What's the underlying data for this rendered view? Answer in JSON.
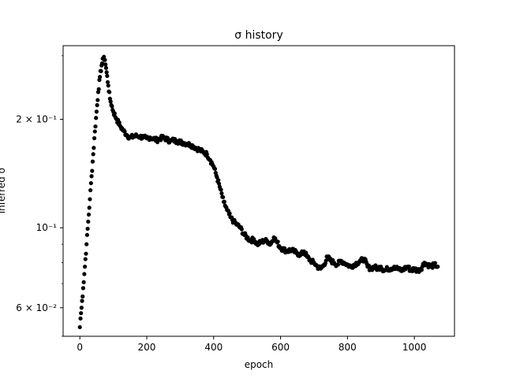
{
  "chart_data": {
    "type": "scatter",
    "title": "σ history",
    "xlabel": "epoch",
    "ylabel": "inferred σ",
    "y_scale": "log",
    "xlim": [
      -50,
      1120
    ],
    "ylim": [
      0.05,
      0.32
    ],
    "x_ticks": [
      0,
      200,
      400,
      600,
      800,
      1000
    ],
    "x_tick_labels": [
      "0",
      "200",
      "400",
      "600",
      "800",
      "1000"
    ],
    "y_major_ticks": [
      0.06,
      0.1,
      0.2
    ],
    "y_tick_labels": [
      "6 × 10⁻²",
      "10⁻¹",
      "2 × 10⁻¹"
    ],
    "y_minor_ticks": [
      0.05,
      0.07,
      0.08,
      0.09,
      0.3
    ],
    "grid": false,
    "legend": "none",
    "marker_color": "#000000",
    "marker": "filled-circle",
    "series": [
      {
        "x": [
          0,
          2,
          5,
          10,
          15,
          20,
          25,
          30,
          35,
          40,
          45,
          50,
          55,
          60,
          65,
          70,
          72,
          75,
          80,
          85,
          90,
          100,
          110,
          120,
          130,
          140,
          150,
          160,
          170,
          180,
          190,
          200,
          210,
          220,
          230,
          240,
          250,
          260,
          270,
          280,
          290,
          300,
          310,
          320,
          330,
          340,
          350,
          360,
          370,
          380,
          390,
          400,
          410,
          420,
          430,
          440,
          450,
          460,
          470,
          480,
          490,
          500,
          510,
          520,
          530,
          540,
          550,
          560,
          570,
          580,
          590,
          600,
          610,
          620,
          630,
          640,
          650,
          660,
          670,
          680,
          690,
          700,
          710,
          720,
          730,
          740,
          750,
          760,
          770,
          780,
          790,
          800,
          810,
          820,
          830,
          840,
          850,
          860,
          870,
          880,
          890,
          900,
          910,
          920,
          930,
          940,
          950,
          960,
          970,
          980,
          990,
          1000,
          1010,
          1020,
          1030,
          1040,
          1050,
          1060,
          1070
        ],
        "y": [
          0.053,
          0.056,
          0.06,
          0.068,
          0.078,
          0.09,
          0.104,
          0.12,
          0.139,
          0.16,
          0.185,
          0.21,
          0.238,
          0.262,
          0.282,
          0.295,
          0.298,
          0.292,
          0.27,
          0.248,
          0.228,
          0.21,
          0.2,
          0.192,
          0.186,
          0.181,
          0.178,
          0.179,
          0.18,
          0.179,
          0.178,
          0.177,
          0.178,
          0.177,
          0.175,
          0.177,
          0.178,
          0.176,
          0.174,
          0.175,
          0.174,
          0.173,
          0.172,
          0.171,
          0.17,
          0.168,
          0.166,
          0.164,
          0.162,
          0.16,
          0.154,
          0.148,
          0.138,
          0.128,
          0.118,
          0.112,
          0.107,
          0.104,
          0.102,
          0.1,
          0.096,
          0.094,
          0.092,
          0.093,
          0.09,
          0.091,
          0.092,
          0.092,
          0.09,
          0.094,
          0.091,
          0.088,
          0.087,
          0.086,
          0.087,
          0.086,
          0.085,
          0.084,
          0.086,
          0.083,
          0.081,
          0.08,
          0.078,
          0.077,
          0.079,
          0.083,
          0.081,
          0.08,
          0.079,
          0.081,
          0.08,
          0.079,
          0.078,
          0.079,
          0.08,
          0.081,
          0.082,
          0.078,
          0.077,
          0.078,
          0.077,
          0.078,
          0.076,
          0.077,
          0.077,
          0.078,
          0.077,
          0.076,
          0.077,
          0.078,
          0.076,
          0.077,
          0.076,
          0.077,
          0.08,
          0.079,
          0.078,
          0.079,
          0.078
        ]
      }
    ]
  }
}
